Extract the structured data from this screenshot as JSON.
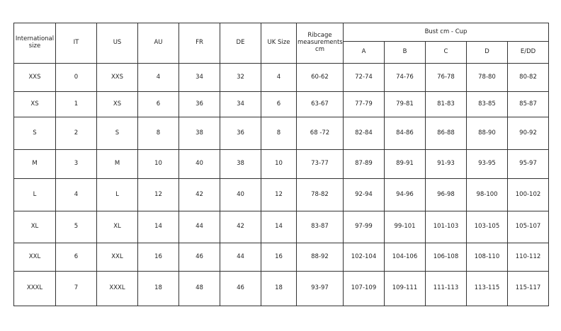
{
  "table": {
    "headers": [
      "International size",
      "IT",
      "US",
      "AU",
      "FR",
      "DE",
      "UK Size",
      "Ribcage measurements cm"
    ],
    "bust_header": "Bust cm - Cup",
    "cups": [
      "A",
      "B",
      "C",
      "D",
      "E/DD"
    ],
    "rows": [
      [
        "XXS",
        "0",
        "XXS",
        "4",
        "34",
        "32",
        "4",
        "60-62",
        "72-74",
        "74-76",
        "76-78",
        "78-80",
        "80-82"
      ],
      [
        "XS",
        "1",
        "XS",
        "6",
        "36",
        "34",
        "6",
        "63-67",
        "77-79",
        "79-81",
        "81-83",
        "83-85",
        "85-87"
      ],
      [
        "S",
        "2",
        "S",
        "8",
        "38",
        "36",
        "8",
        "68 -72",
        "82-84",
        "84-86",
        "86-88",
        "88-90",
        "90-92"
      ],
      [
        "M",
        "3",
        "M",
        "10",
        "40",
        "38",
        "10",
        "73-77",
        "87-89",
        "89-91",
        "91-93",
        "93-95",
        "95-97"
      ],
      [
        "L",
        "4",
        "L",
        "12",
        "42",
        "40",
        "12",
        "78-82",
        "92-94",
        "94-96",
        "96-98",
        "98-100",
        "100-102"
      ],
      [
        "XL",
        "5",
        "XL",
        "14",
        "44",
        "42",
        "14",
        "83-87",
        "97-99",
        "99-101",
        "101-103",
        "103-105",
        "105-107"
      ],
      [
        "XXL",
        "6",
        "XXL",
        "16",
        "46",
        "44",
        "16",
        "88-92",
        "102-104",
        "104-106",
        "106-108",
        "108-110",
        "110-112"
      ],
      [
        "XXXL",
        "7",
        "XXXL",
        "18",
        "48",
        "46",
        "18",
        "93-97",
        "107-109",
        "109-111",
        "111-113",
        "113-115",
        "115-117"
      ]
    ]
  }
}
